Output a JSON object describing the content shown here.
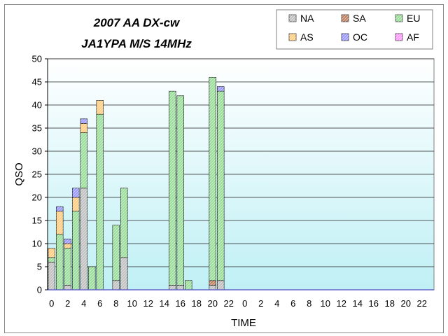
{
  "chart_data": {
    "type": "bar",
    "stacked": true,
    "title": [
      "2007 AA DX-cw",
      "JA1YPA M/S   14MHz"
    ],
    "xlabel": "TIME",
    "ylabel": "QSO",
    "ylim": [
      0,
      50
    ],
    "yticks": [
      "0",
      "5",
      "10",
      "15",
      "20",
      "25",
      "30",
      "35",
      "40",
      "45",
      "50"
    ],
    "xtick_labels": [
      "0",
      "2",
      "4",
      "6",
      "8",
      "10",
      "12",
      "14",
      "16",
      "18",
      "20",
      "22",
      "0",
      "2",
      "4",
      "6",
      "8",
      "10",
      "12",
      "14",
      "16",
      "18",
      "20",
      "22"
    ],
    "hours": 48,
    "grid": true,
    "legend_position": "top-right",
    "series": [
      {
        "name": "NA",
        "color": "#c0c0c0",
        "values": [
          6,
          0,
          1,
          0,
          22,
          0,
          0,
          0,
          2,
          7,
          0,
          0,
          0,
          0,
          0,
          1,
          1,
          0,
          0,
          0,
          1,
          2,
          0,
          0,
          0,
          0,
          0,
          0,
          0,
          0,
          0,
          0,
          0,
          0,
          0,
          0,
          0,
          0,
          0,
          0,
          0,
          0,
          0,
          0,
          0,
          0,
          0,
          0
        ]
      },
      {
        "name": "SA",
        "color": "#c08060",
        "values": [
          0,
          0,
          0,
          0,
          0,
          0,
          0,
          0,
          0,
          0,
          0,
          0,
          0,
          0,
          0,
          0,
          0,
          0,
          0,
          0,
          1,
          0,
          0,
          0,
          0,
          0,
          0,
          0,
          0,
          0,
          0,
          0,
          0,
          0,
          0,
          0,
          0,
          0,
          0,
          0,
          0,
          0,
          0,
          0,
          0,
          0,
          0,
          0
        ]
      },
      {
        "name": "EU",
        "color": "#99dd99",
        "values": [
          1,
          12,
          8,
          17,
          12,
          5,
          38,
          0,
          12,
          15,
          0,
          0,
          0,
          0,
          0,
          42,
          41,
          2,
          0,
          0,
          44,
          41,
          0,
          0,
          0,
          0,
          0,
          0,
          0,
          0,
          0,
          0,
          0,
          0,
          0,
          0,
          0,
          0,
          0,
          0,
          0,
          0,
          0,
          0,
          0,
          0,
          0,
          0
        ]
      },
      {
        "name": "AS",
        "color": "#ffcc80",
        "values": [
          2,
          5,
          1,
          3,
          2,
          0,
          3,
          0,
          0,
          0,
          0,
          0,
          0,
          0,
          0,
          0,
          0,
          0,
          0,
          0,
          0,
          0,
          0,
          0,
          0,
          0,
          0,
          0,
          0,
          0,
          0,
          0,
          0,
          0,
          0,
          0,
          0,
          0,
          0,
          0,
          0,
          0,
          0,
          0,
          0,
          0,
          0,
          0
        ]
      },
      {
        "name": "OC",
        "color": "#9999ff",
        "values": [
          0,
          1,
          1,
          2,
          1,
          0,
          0,
          0,
          0,
          0,
          0,
          0,
          0,
          0,
          0,
          0,
          0,
          0,
          0,
          0,
          0,
          1,
          0,
          0,
          0,
          0,
          0,
          0,
          0,
          0,
          0,
          0,
          0,
          0,
          0,
          0,
          0,
          0,
          0,
          0,
          0,
          0,
          0,
          0,
          0,
          0,
          0,
          0
        ]
      },
      {
        "name": "AF",
        "color": "#ff99ff",
        "values": [
          0,
          0,
          0,
          0,
          0,
          0,
          0,
          0,
          0,
          0,
          0,
          0,
          0,
          0,
          0,
          0,
          0,
          0,
          0,
          0,
          0,
          0,
          0,
          0,
          0,
          0,
          0,
          0,
          0,
          0,
          0,
          0,
          0,
          0,
          0,
          0,
          0,
          0,
          0,
          0,
          0,
          0,
          0,
          0,
          0,
          0,
          0,
          0
        ]
      }
    ]
  },
  "colors": {
    "plot_bg_top": "#ffffff",
    "plot_bg_bottom": "#bff0f5",
    "zero_line": "#6666cc"
  }
}
